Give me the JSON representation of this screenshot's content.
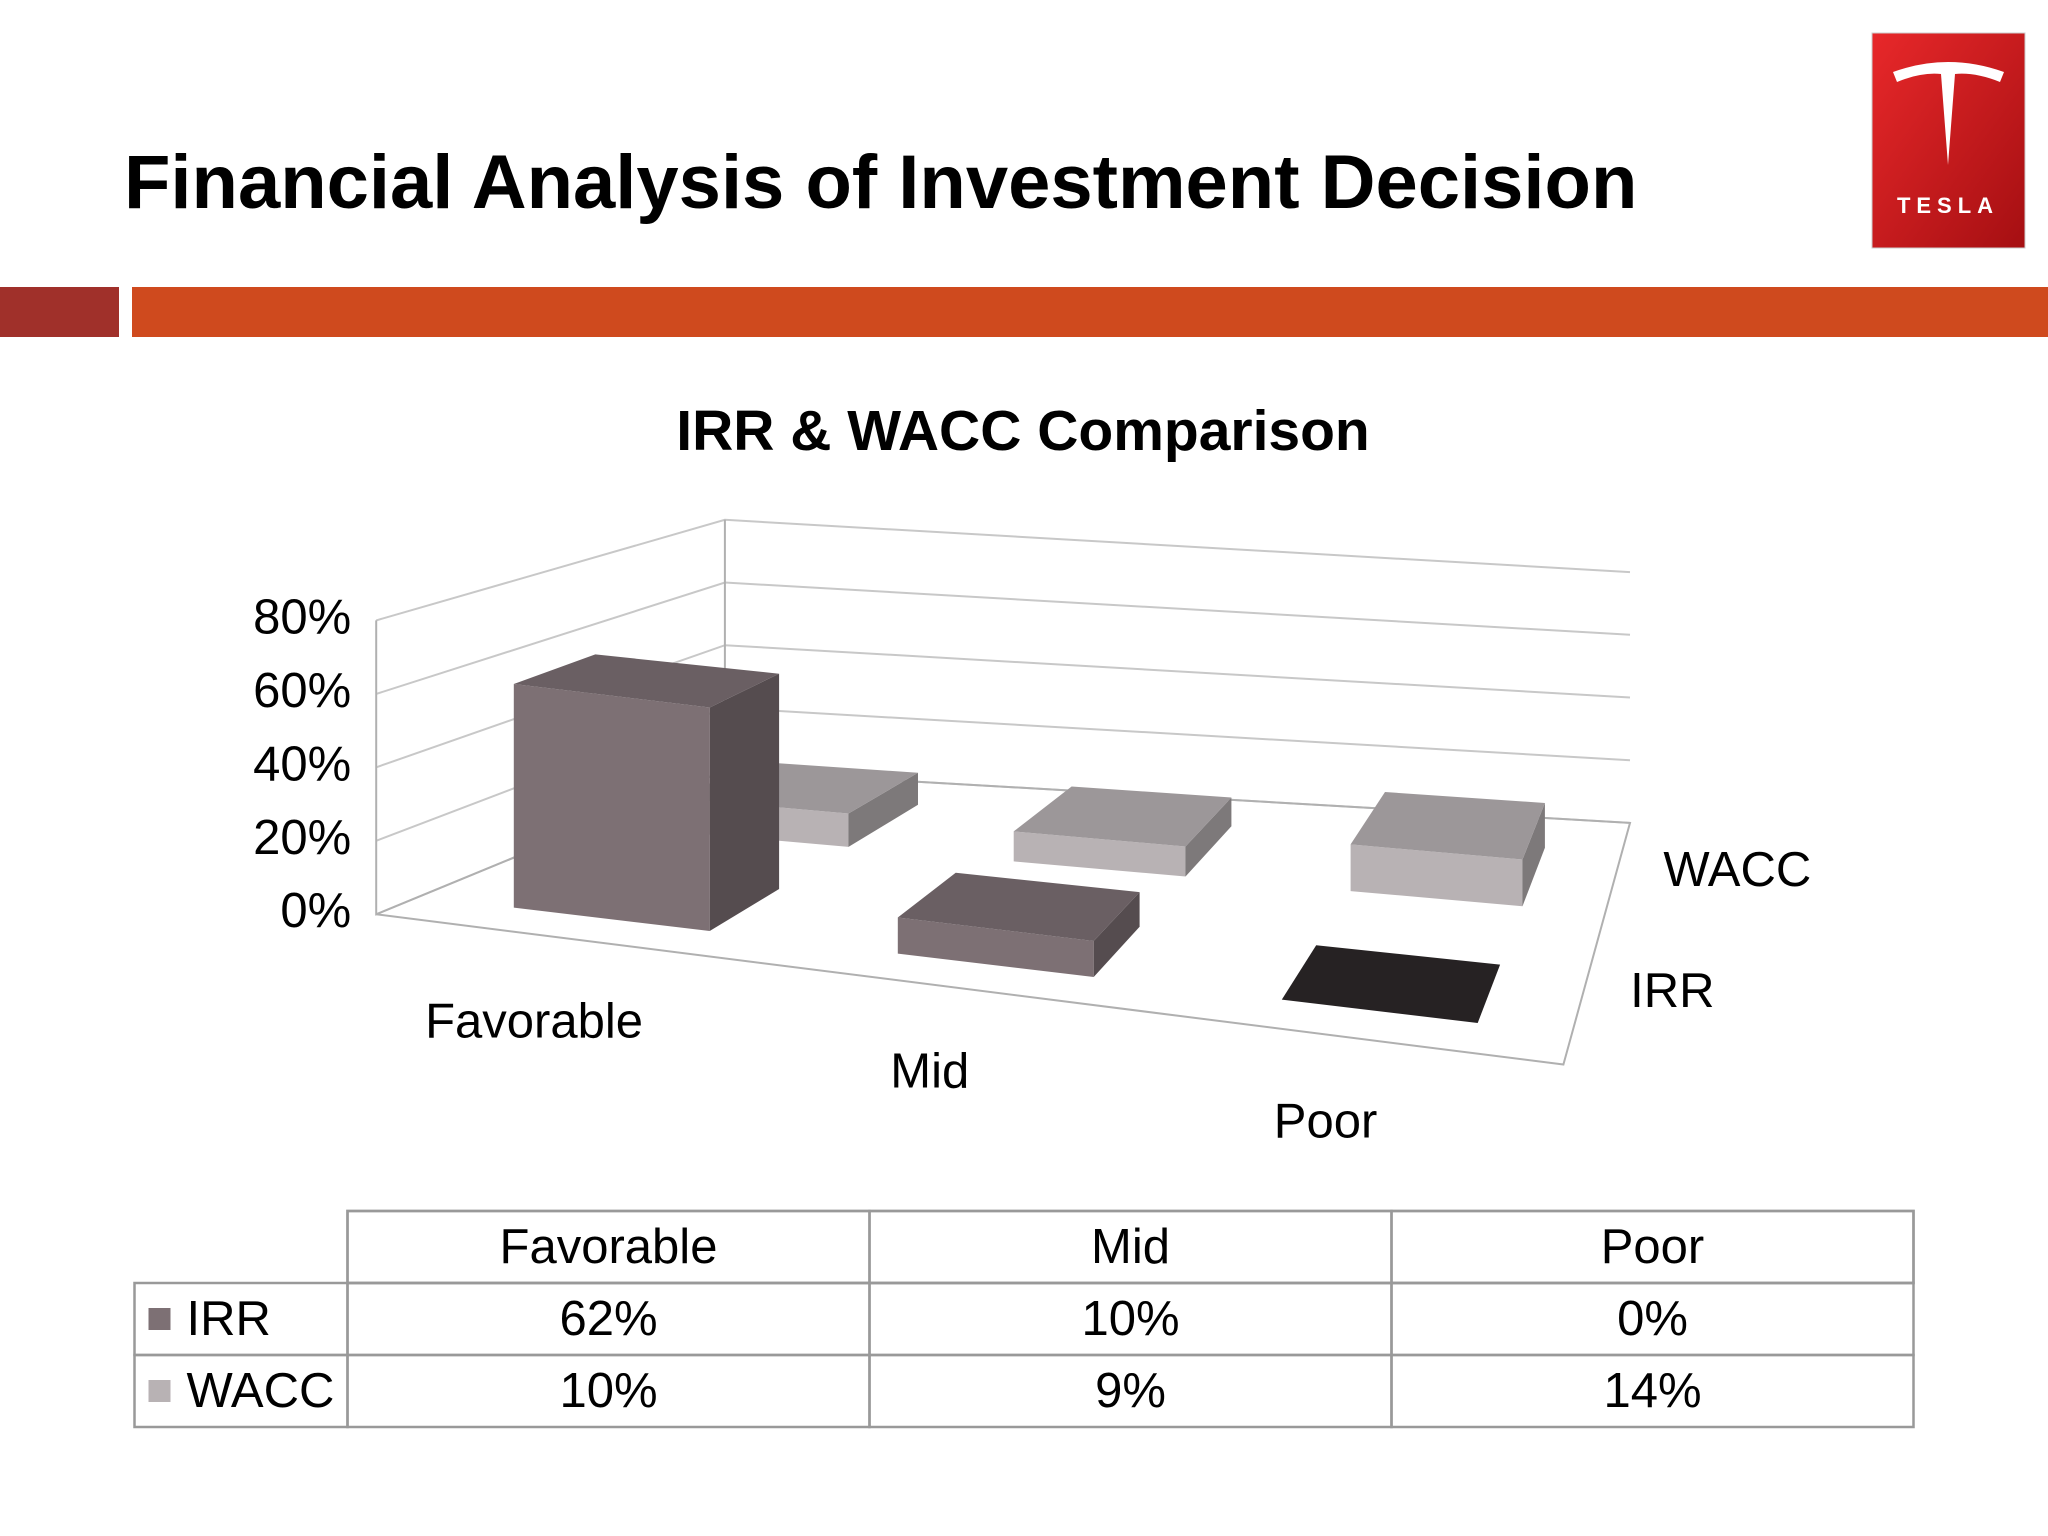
{
  "header": {
    "title": "Financial Analysis of Investment Decision",
    "logo_text": "TESLA"
  },
  "chart_data": {
    "type": "bar",
    "title": "IRR & WACC Comparison",
    "categories": [
      "Favorable",
      "Mid",
      "Poor"
    ],
    "series": [
      {
        "name": "IRR",
        "color": "#7d7074",
        "values": [
          62,
          10,
          0
        ],
        "value_labels": [
          "62%",
          "10%",
          "0%"
        ]
      },
      {
        "name": "WACC",
        "color": "#b8b2b4",
        "values": [
          10,
          9,
          14
        ],
        "value_labels": [
          "10%",
          "9%",
          "14%"
        ]
      }
    ],
    "ylim": [
      0,
      80
    ],
    "yticks": [
      {
        "value": 0,
        "label": "0%"
      },
      {
        "value": 20,
        "label": "20%"
      },
      {
        "value": 40,
        "label": "40%"
      },
      {
        "value": 60,
        "label": "60%"
      },
      {
        "value": 80,
        "label": "80%"
      }
    ],
    "grid": true
  }
}
